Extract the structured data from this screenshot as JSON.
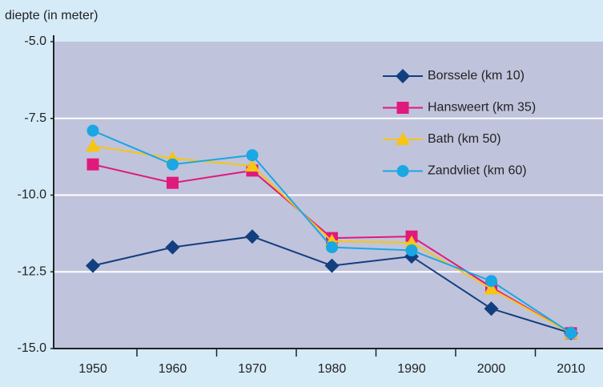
{
  "chart_data": {
    "type": "line",
    "y_axis_label": "diepte (in meter)",
    "categories": [
      "1950",
      "1960",
      "1970",
      "1980",
      "1990",
      "2000",
      "2010"
    ],
    "series": [
      {
        "name": "Borssele (km 10)",
        "color": "#123f7f",
        "marker": "diamond",
        "values": [
          -12.3,
          -11.7,
          -11.35,
          -12.3,
          -12.0,
          -13.7,
          -14.5
        ]
      },
      {
        "name": "Hansweert (km 35)",
        "color": "#e0197d",
        "marker": "square",
        "values": [
          -9.0,
          -9.6,
          -9.2,
          -11.4,
          -11.35,
          -13.0,
          -14.5
        ]
      },
      {
        "name": "Bath (km 50)",
        "color": "#f7c512",
        "marker": "triangle",
        "values": [
          -8.4,
          -8.8,
          -9.05,
          -11.5,
          -11.55,
          -13.05,
          -14.5
        ]
      },
      {
        "name": "Zandvliet (km 60)",
        "color": "#1aa7e4",
        "marker": "circle",
        "values": [
          -7.9,
          -9.0,
          -8.7,
          -11.7,
          -11.8,
          -12.8,
          -14.5
        ]
      }
    ],
    "ylim": [
      -15,
      -5
    ],
    "yticks": [
      {
        "value": -15,
        "label": "-15.0"
      },
      {
        "value": -12.5,
        "label": "-12.5"
      },
      {
        "value": -10,
        "label": "-10.0"
      },
      {
        "value": -7.5,
        "label": "-7.5"
      },
      {
        "value": -5,
        "label": "-5.0"
      }
    ],
    "grid": true
  }
}
